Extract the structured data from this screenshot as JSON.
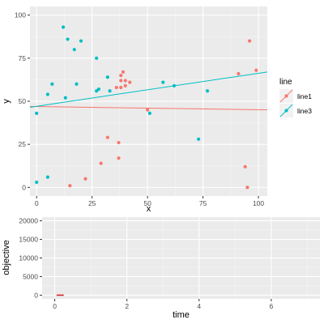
{
  "chart_data": [
    {
      "type": "scatter",
      "xlabel": "x",
      "ylabel": "y",
      "xlim": [
        -3,
        104
      ],
      "ylim": [
        -5,
        105
      ],
      "x_ticks": [
        0,
        25,
        50,
        75,
        100
      ],
      "y_ticks": [
        0,
        25,
        50,
        75,
        100
      ],
      "grid": true,
      "legend": {
        "title": "line",
        "placement": "right",
        "entries": [
          "line1",
          "line3"
        ]
      },
      "series": [
        {
          "name": "line1",
          "color": "#F8766D",
          "points": [
            [
              15,
              1
            ],
            [
              22,
              5
            ],
            [
              29,
              14
            ],
            [
              32,
              29
            ],
            [
              37,
              17
            ],
            [
              37,
              26
            ],
            [
              36,
              58
            ],
            [
              38,
              58
            ],
            [
              38,
              62
            ],
            [
              38,
              65
            ],
            [
              39,
              67
            ],
            [
              40,
              62
            ],
            [
              40,
              59
            ],
            [
              42,
              61
            ],
            [
              50,
              45
            ],
            [
              91,
              66
            ],
            [
              94,
              12
            ],
            [
              95,
              0
            ],
            [
              96,
              85
            ],
            [
              99,
              68
            ]
          ],
          "trend": {
            "x": [
              -3,
              104
            ],
            "y": [
              47,
              45
            ]
          }
        },
        {
          "name": "line3",
          "color": "#00BFC4",
          "points": [
            [
              0,
              3
            ],
            [
              0,
              43
            ],
            [
              5,
              54
            ],
            [
              5,
              6
            ],
            [
              7,
              60
            ],
            [
              12,
              93
            ],
            [
              13,
              52
            ],
            [
              14,
              86
            ],
            [
              17,
              80
            ],
            [
              18,
              60
            ],
            [
              20,
              85
            ],
            [
              27,
              75
            ],
            [
              27,
              56
            ],
            [
              28,
              57
            ],
            [
              32,
              64
            ],
            [
              33,
              56
            ],
            [
              51,
              43
            ],
            [
              57,
              61
            ],
            [
              62,
              59
            ],
            [
              73,
              28
            ],
            [
              77,
              56
            ]
          ],
          "trend": {
            "x": [
              -3,
              104
            ],
            "y": [
              46.5,
              67
            ]
          }
        }
      ]
    },
    {
      "type": "line",
      "xlabel": "time",
      "ylabel": "objective",
      "xlim": [
        -0.35,
        7.35
      ],
      "ylim": [
        -1000,
        21000
      ],
      "x_ticks": [
        0,
        2,
        4,
        6
      ],
      "y_ticks": [
        0,
        5000,
        10000,
        15000,
        20000
      ],
      "grid": true,
      "series": [
        {
          "color": "#D42A2A",
          "x": [
            0.05,
            0.25
          ],
          "y": [
            0,
            0
          ]
        }
      ]
    }
  ]
}
